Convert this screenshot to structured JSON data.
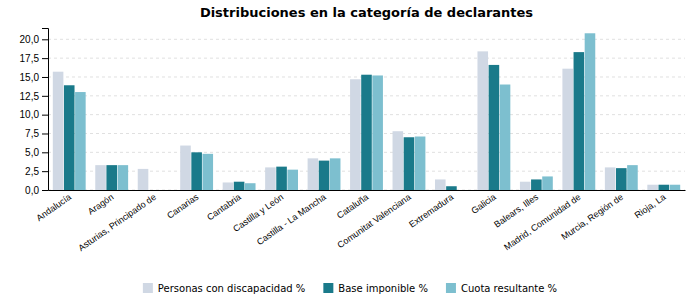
{
  "chart_data": {
    "type": "bar",
    "title": "Distribuciones en la categoría de declarantes",
    "categories": [
      "Andalucía",
      "Aragón",
      "Asturias, Principado de",
      "Canarias",
      "Cantabria",
      "Castilla y León",
      "Castilla - La Mancha",
      "Cataluña",
      "Comunitat Valenciana",
      "Extremadura",
      "Galicia",
      "Balears, Illes",
      "Madrid, Comunidad de",
      "Murcia, Región de",
      "Rioja, La"
    ],
    "series": [
      {
        "name": "Personas con discapacidad %",
        "color": "#d0d8e4",
        "values": [
          15.7,
          3.3,
          2.8,
          5.9,
          1.0,
          3.0,
          4.2,
          14.7,
          7.8,
          1.4,
          18.4,
          1.1,
          16.1,
          3.0,
          0.7
        ]
      },
      {
        "name": "Base imponible %",
        "color": "#1a7a8a",
        "values": [
          13.9,
          3.3,
          0.0,
          5.0,
          1.1,
          3.1,
          3.9,
          15.3,
          7.0,
          0.5,
          16.6,
          1.4,
          18.3,
          2.9,
          0.7
        ]
      },
      {
        "name": "Cuota resultante %",
        "color": "#7dbfcf",
        "values": [
          13.0,
          3.3,
          0.0,
          4.8,
          0.9,
          2.7,
          4.2,
          15.2,
          7.1,
          0.0,
          14.0,
          1.8,
          20.8,
          3.3,
          0.7
        ]
      }
    ],
    "ylim": [
      0,
      21.5
    ],
    "yticks": [
      {
        "value": 0.0,
        "label": "0,0"
      },
      {
        "value": 2.5,
        "label": "2,5"
      },
      {
        "value": 5.0,
        "label": "5,0"
      },
      {
        "value": 7.5,
        "label": "7,5"
      },
      {
        "value": 10.0,
        "label": "10,0"
      },
      {
        "value": 12.5,
        "label": "12,5"
      },
      {
        "value": 15.0,
        "label": "15,0"
      },
      {
        "value": 17.5,
        "label": "17,5"
      },
      {
        "value": 20.0,
        "label": "20,0"
      }
    ],
    "grid": true,
    "legend": "bottom"
  }
}
